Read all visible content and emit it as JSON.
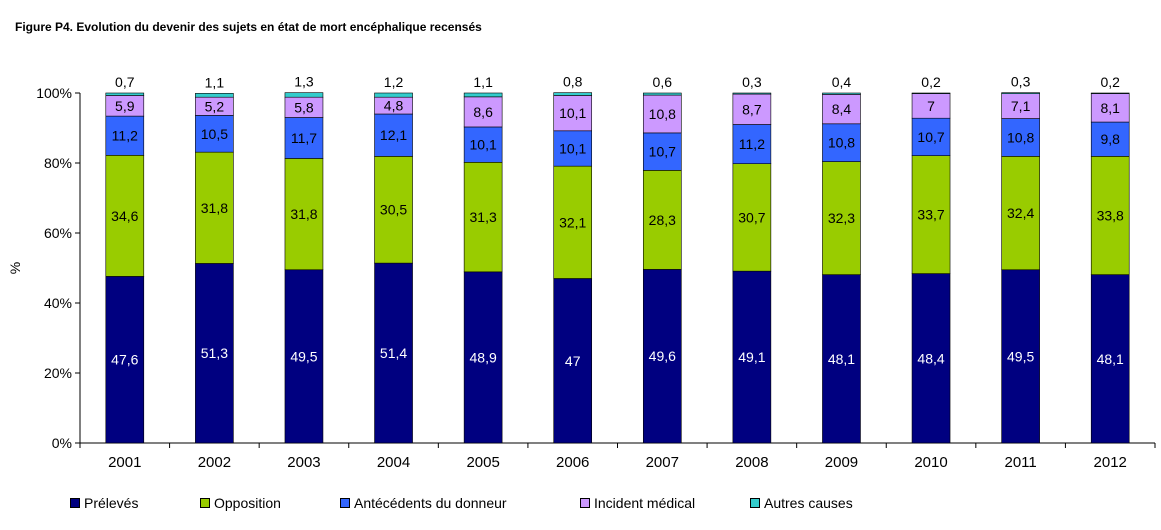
{
  "title": "Figure P4. Evolution du devenir des sujets en état de mort encéphalique recensés",
  "chart_data": {
    "type": "bar",
    "stacked": true,
    "title": "Figure P4. Evolution du devenir des sujets en état de mort encéphalique recensés",
    "xlabel": "",
    "ylabel": "%",
    "ylim": [
      0,
      100
    ],
    "yticks": [
      "0%",
      "20%",
      "40%",
      "60%",
      "80%",
      "100%"
    ],
    "grid": false,
    "legend_position": "bottom",
    "categories": [
      "2001",
      "2002",
      "2003",
      "2004",
      "2005",
      "2006",
      "2007",
      "2008",
      "2009",
      "2010",
      "2011",
      "2012"
    ],
    "series": [
      {
        "name": "Prélevés",
        "color": "#000080",
        "values": [
          47.6,
          51.3,
          49.5,
          51.4,
          48.9,
          47,
          49.6,
          49.1,
          48.1,
          48.4,
          49.5,
          48.1
        ],
        "labels": [
          "47,6",
          "51,3",
          "49,5",
          "51,4",
          "48,9",
          "47",
          "49,6",
          "49,1",
          "48,1",
          "48,4",
          "49,5",
          "48,1"
        ]
      },
      {
        "name": "Opposition",
        "color": "#99CC00",
        "values": [
          34.6,
          31.8,
          31.8,
          30.5,
          31.3,
          32.1,
          28.3,
          30.7,
          32.3,
          33.7,
          32.4,
          33.8
        ],
        "labels": [
          "34,6",
          "31,8",
          "31,8",
          "30,5",
          "31,3",
          "32,1",
          "28,3",
          "30,7",
          "32,3",
          "33,7",
          "32,4",
          "33,8"
        ]
      },
      {
        "name": "Antécédents du donneur",
        "color": "#3366FF",
        "values": [
          11.2,
          10.5,
          11.7,
          12.1,
          10.1,
          10.1,
          10.7,
          11.2,
          10.8,
          10.7,
          10.8,
          9.8
        ],
        "labels": [
          "11,2",
          "10,5",
          "11,7",
          "12,1",
          "10,1",
          "10,1",
          "10,7",
          "11,2",
          "10,8",
          "10,7",
          "10,8",
          "9,8"
        ]
      },
      {
        "name": "Incident médical",
        "color": "#CC99FF",
        "values": [
          5.9,
          5.2,
          5.8,
          4.8,
          8.6,
          10.1,
          10.8,
          8.7,
          8.4,
          7,
          7.1,
          8.1
        ],
        "labels": [
          "5,9",
          "5,2",
          "5,8",
          "4,8",
          "8,6",
          "10,1",
          "10,8",
          "8,7",
          "8,4",
          "7",
          "7,1",
          "8,1"
        ]
      },
      {
        "name": "Autres causes",
        "color": "#33CCCC",
        "values": [
          0.7,
          1.1,
          1.3,
          1.2,
          1.1,
          0.8,
          0.6,
          0.3,
          0.4,
          0.2,
          0.3,
          0.2
        ],
        "labels": [
          "0,7",
          "1,1",
          "1,3",
          "1,2",
          "1,1",
          "0,8",
          "0,6",
          "0,3",
          "0,4",
          "0,2",
          "0,3",
          "0,2"
        ]
      }
    ]
  }
}
